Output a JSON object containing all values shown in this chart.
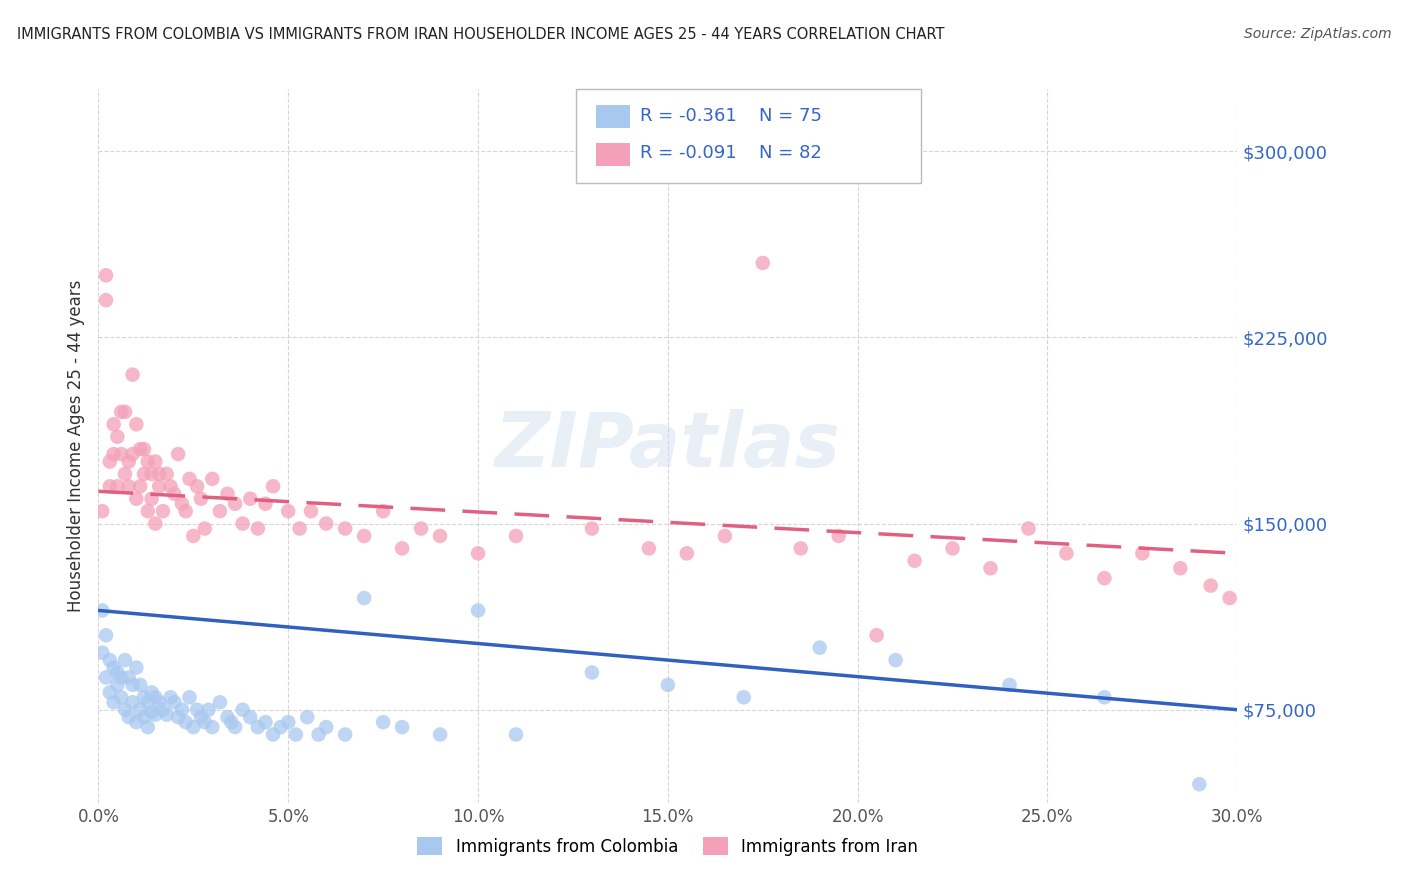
{
  "title": "IMMIGRANTS FROM COLOMBIA VS IMMIGRANTS FROM IRAN HOUSEHOLDER INCOME AGES 25 - 44 YEARS CORRELATION CHART",
  "source": "Source: ZipAtlas.com",
  "ylabel": "Householder Income Ages 25 - 44 years",
  "xlim": [
    0.0,
    0.3
  ],
  "ylim": [
    37500,
    325000
  ],
  "yticks": [
    75000,
    150000,
    225000,
    300000
  ],
  "xticks": [
    0.0,
    0.05,
    0.1,
    0.15,
    0.2,
    0.25,
    0.3
  ],
  "colombia_color": "#A8C8F0",
  "iran_color": "#F4A0B8",
  "colombia_line_color": "#3060C0",
  "iran_line_color": "#E06080",
  "colombia_R": -0.361,
  "colombia_N": 75,
  "iran_R": -0.091,
  "iran_N": 82,
  "colombia_scatter_x": [
    0.001,
    0.001,
    0.002,
    0.002,
    0.003,
    0.003,
    0.004,
    0.004,
    0.005,
    0.005,
    0.006,
    0.006,
    0.007,
    0.007,
    0.008,
    0.008,
    0.009,
    0.009,
    0.01,
    0.01,
    0.011,
    0.011,
    0.012,
    0.012,
    0.013,
    0.013,
    0.014,
    0.014,
    0.015,
    0.015,
    0.016,
    0.017,
    0.018,
    0.019,
    0.02,
    0.021,
    0.022,
    0.023,
    0.024,
    0.025,
    0.026,
    0.027,
    0.028,
    0.029,
    0.03,
    0.032,
    0.034,
    0.035,
    0.036,
    0.038,
    0.04,
    0.042,
    0.044,
    0.046,
    0.048,
    0.05,
    0.052,
    0.055,
    0.058,
    0.06,
    0.065,
    0.07,
    0.075,
    0.08,
    0.09,
    0.1,
    0.11,
    0.13,
    0.15,
    0.17,
    0.19,
    0.21,
    0.24,
    0.265,
    0.29
  ],
  "colombia_scatter_y": [
    115000,
    98000,
    105000,
    88000,
    95000,
    82000,
    92000,
    78000,
    90000,
    85000,
    88000,
    80000,
    95000,
    75000,
    88000,
    72000,
    85000,
    78000,
    92000,
    70000,
    85000,
    75000,
    80000,
    72000,
    78000,
    68000,
    82000,
    74000,
    80000,
    73000,
    78000,
    75000,
    73000,
    80000,
    78000,
    72000,
    75000,
    70000,
    80000,
    68000,
    75000,
    72000,
    70000,
    75000,
    68000,
    78000,
    72000,
    70000,
    68000,
    75000,
    72000,
    68000,
    70000,
    65000,
    68000,
    70000,
    65000,
    72000,
    65000,
    68000,
    65000,
    120000,
    70000,
    68000,
    65000,
    115000,
    65000,
    90000,
    85000,
    80000,
    100000,
    95000,
    85000,
    80000,
    45000
  ],
  "iran_scatter_x": [
    0.001,
    0.002,
    0.002,
    0.003,
    0.003,
    0.004,
    0.004,
    0.005,
    0.005,
    0.006,
    0.006,
    0.007,
    0.007,
    0.008,
    0.008,
    0.009,
    0.009,
    0.01,
    0.01,
    0.011,
    0.011,
    0.012,
    0.012,
    0.013,
    0.013,
    0.014,
    0.014,
    0.015,
    0.015,
    0.016,
    0.016,
    0.017,
    0.018,
    0.019,
    0.02,
    0.021,
    0.022,
    0.023,
    0.024,
    0.025,
    0.026,
    0.027,
    0.028,
    0.03,
    0.032,
    0.034,
    0.036,
    0.038,
    0.04,
    0.042,
    0.044,
    0.046,
    0.05,
    0.053,
    0.056,
    0.06,
    0.065,
    0.07,
    0.075,
    0.08,
    0.085,
    0.09,
    0.1,
    0.11,
    0.13,
    0.145,
    0.155,
    0.165,
    0.175,
    0.185,
    0.195,
    0.205,
    0.215,
    0.225,
    0.235,
    0.245,
    0.255,
    0.265,
    0.275,
    0.285,
    0.293,
    0.298
  ],
  "iran_scatter_y": [
    155000,
    240000,
    250000,
    175000,
    165000,
    190000,
    178000,
    165000,
    185000,
    178000,
    195000,
    170000,
    195000,
    175000,
    165000,
    210000,
    178000,
    190000,
    160000,
    180000,
    165000,
    170000,
    180000,
    155000,
    175000,
    170000,
    160000,
    175000,
    150000,
    165000,
    170000,
    155000,
    170000,
    165000,
    162000,
    178000,
    158000,
    155000,
    168000,
    145000,
    165000,
    160000,
    148000,
    168000,
    155000,
    162000,
    158000,
    150000,
    160000,
    148000,
    158000,
    165000,
    155000,
    148000,
    155000,
    150000,
    148000,
    145000,
    155000,
    140000,
    148000,
    145000,
    138000,
    145000,
    148000,
    140000,
    138000,
    145000,
    255000,
    140000,
    145000,
    105000,
    135000,
    140000,
    132000,
    148000,
    138000,
    128000,
    138000,
    132000,
    125000,
    120000
  ]
}
